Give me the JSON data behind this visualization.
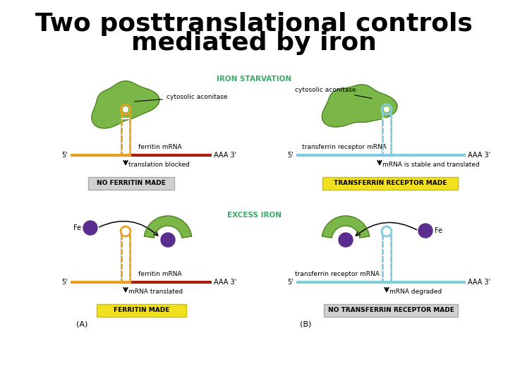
{
  "title_line1": "Two posttranslational controls",
  "title_line2": "mediated by iron",
  "title_fontsize": 26,
  "title_fontweight": "bold",
  "bg_color": "#ffffff",
  "green_color": "#7ab648",
  "green_dark": "#4a7a20",
  "orange_color": "#e8a020",
  "red_color": "#aa2010",
  "light_blue_color": "#82cce0",
  "light_blue_dark": "#3a9abf",
  "purple_color": "#5b2d8e",
  "teal_label": "#3aaa6a",
  "iron_starvation_label": "IRON STARVATION",
  "excess_iron_label": "EXCESS IRON",
  "label_A": "(A)",
  "label_B": "(B)",
  "box_gray_face": "#d0d0d0",
  "box_gray_edge": "#aaaaaa",
  "box_yellow_face": "#f0e020",
  "box_yellow_edge": "#c8c000"
}
